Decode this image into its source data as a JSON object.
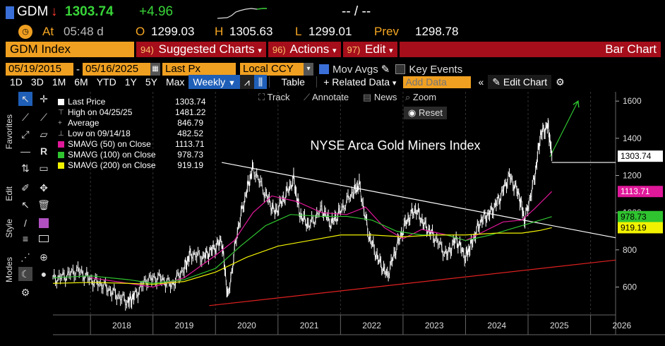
{
  "header": {
    "ticker": "GDM",
    "arrow": "↓",
    "last": "1303.74",
    "change": "+4.96",
    "bidask": "-- / --",
    "at_label": "At",
    "time": "05:48 d",
    "open_label": "O",
    "open": "1299.03",
    "high_label": "H",
    "high": "1305.63",
    "low_label": "L",
    "low": "1299.01",
    "prev_label": "Prev",
    "prev": "1298.78"
  },
  "menubar": {
    "security": "GDM Index",
    "suggested_num": "94)",
    "suggested": "Suggested Charts",
    "actions_num": "96)",
    "actions": "Actions",
    "edit_num": "97)",
    "edit": "Edit",
    "chart_type": "Bar Chart"
  },
  "daterow": {
    "start": "05/19/2015",
    "dash": "-",
    "end": "05/16/2025",
    "price_field": "Last Px",
    "currency": "Local CCY",
    "mov_avgs": "Mov Avgs",
    "key_events": "Key Events"
  },
  "toolrow": {
    "ranges": [
      "1D",
      "3D",
      "1M",
      "6M",
      "YTD",
      "1Y",
      "5Y",
      "Max"
    ],
    "period": "Weekly",
    "table": "Table",
    "related": "Related Data",
    "add_data_placeholder": "Add Data",
    "edit_chart": "Edit Chart"
  },
  "subtools": {
    "track": "Track",
    "annotate": "Annotate",
    "news": "News",
    "zoom": "Zoom",
    "reset": "Reset"
  },
  "sidebar": {
    "favorites": "Favorites",
    "edit": "Edit",
    "style": "Style",
    "modes": "Modes"
  },
  "legend": [
    {
      "label": "Last Price",
      "value": "1303.74",
      "color": "#ffffff"
    },
    {
      "label": "High on 04/25/25",
      "value": "1481.22",
      "color": ""
    },
    {
      "label": "Average",
      "value": "846.79",
      "color": ""
    },
    {
      "label": "Low on 09/14/18",
      "value": "482.52",
      "color": ""
    },
    {
      "label": "SMAVG (50)  on Close",
      "value": "1113.71",
      "color": "#e0189a"
    },
    {
      "label": "SMAVG (100)  on Close",
      "value": "978.73",
      "color": "#2fc42f"
    },
    {
      "label": "SMAVG (200)  on Close",
      "value": "919.19",
      "color": "#f2f200"
    }
  ],
  "chart_data": {
    "type": "line",
    "title": "NYSE Arca Gold Miners Index",
    "x_ticks": [
      "2018",
      "2019",
      "2020",
      "2021",
      "2022",
      "2023",
      "2024",
      "2025",
      "2026"
    ],
    "y_ticks": [
      600,
      800,
      1000,
      1200,
      1400,
      1600
    ],
    "ylim": [
      450,
      1650
    ],
    "xlim": [
      2017.4,
      2026.4
    ],
    "price_labels": [
      {
        "value": 1303.74,
        "text": "1303.74",
        "bg": "#ffffff",
        "fg": "#000000"
      },
      {
        "value": 1113.71,
        "text": "1113.71",
        "bg": "#e0189a",
        "fg": "#ffffff"
      },
      {
        "value": 978.73,
        "text": "978.73",
        "bg": "#2fc42f",
        "fg": "#000000"
      },
      {
        "value": 919.19,
        "text": "919.19",
        "bg": "#f2f200",
        "fg": "#000000"
      }
    ],
    "series": [
      {
        "name": "Last Price",
        "color": "#ffffff",
        "x": [
          2017.4,
          2017.6,
          2017.8,
          2018.0,
          2018.2,
          2018.4,
          2018.6,
          2018.7,
          2018.9,
          2019.1,
          2019.3,
          2019.5,
          2019.6,
          2019.8,
          2019.95,
          2020.1,
          2020.2,
          2020.35,
          2020.5,
          2020.6,
          2020.8,
          2020.95,
          2021.1,
          2021.25,
          2021.35,
          2021.5,
          2021.7,
          2021.85,
          2022.0,
          2022.2,
          2022.3,
          2022.45,
          2022.6,
          2022.75,
          2022.9,
          2023.05,
          2023.2,
          2023.35,
          2023.5,
          2023.7,
          2023.85,
          2024.0,
          2024.1,
          2024.25,
          2024.4,
          2024.55,
          2024.7,
          2024.85,
          2024.95,
          2025.1,
          2025.2,
          2025.32,
          2025.38
        ],
        "y": [
          640,
          660,
          690,
          640,
          610,
          560,
          520,
          550,
          640,
          650,
          610,
          700,
          780,
          760,
          800,
          850,
          540,
          900,
          1120,
          1240,
          1100,
          1000,
          1080,
          1180,
          990,
          930,
          1020,
          940,
          1010,
          1110,
          1150,
          880,
          750,
          660,
          820,
          950,
          1020,
          930,
          870,
          770,
          860,
          760,
          840,
          960,
          1000,
          1080,
          1200,
          1100,
          960,
          1180,
          1420,
          1470,
          1303.74
        ]
      },
      {
        "name": "SMAVG (50)  on Close",
        "color": "#e0189a",
        "x": [
          2018.0,
          2018.6,
          2019.0,
          2019.5,
          2020.0,
          2020.3,
          2020.6,
          2020.9,
          2021.3,
          2021.7,
          2022.1,
          2022.4,
          2022.7,
          2023.0,
          2023.3,
          2023.7,
          2024.0,
          2024.3,
          2024.6,
          2024.9,
          2025.1,
          2025.38
        ],
        "y": [
          650,
          620,
          600,
          650,
          770,
          850,
          1000,
          1090,
          1060,
          1000,
          990,
          1030,
          920,
          860,
          910,
          880,
          850,
          900,
          950,
          960,
          1020,
          1113.71
        ]
      },
      {
        "name": "SMAVG (100)  on Close",
        "color": "#2fc42f",
        "x": [
          2017.4,
          2018.0,
          2018.6,
          2019.0,
          2019.5,
          2020.0,
          2020.4,
          2020.8,
          2021.2,
          2021.7,
          2022.1,
          2022.5,
          2022.9,
          2023.3,
          2023.7,
          2024.0,
          2024.4,
          2024.8,
          2025.1,
          2025.38
        ],
        "y": [
          650,
          660,
          640,
          620,
          640,
          700,
          820,
          930,
          990,
          980,
          980,
          960,
          900,
          880,
          880,
          850,
          880,
          920,
          950,
          978.73
        ]
      },
      {
        "name": "SMAVG (200)  on Close",
        "color": "#f2f200",
        "x": [
          2017.4,
          2018.0,
          2018.6,
          2019.0,
          2019.5,
          2020.0,
          2020.5,
          2021.0,
          2021.5,
          2022.0,
          2022.5,
          2023.0,
          2023.5,
          2024.0,
          2024.5,
          2024.9,
          2025.2,
          2025.38
        ],
        "y": [
          620,
          625,
          620,
          615,
          630,
          680,
          760,
          820,
          850,
          880,
          880,
          870,
          880,
          880,
          890,
          890,
          905,
          919.19
        ]
      }
    ],
    "trendlines": [
      {
        "color": "#ffffff",
        "x": [
          2020.1,
          2026.4
        ],
        "y": [
          1270,
          865
        ]
      },
      {
        "color": "#e02020",
        "x": [
          2019.9,
          2026.4
        ],
        "y": [
          500,
          745
        ]
      },
      {
        "color": "#ffffff",
        "x": [
          2025.38,
          2026.4
        ],
        "y": [
          1270,
          1270
        ]
      },
      {
        "color": "#2fc42f",
        "x": [
          2025.35,
          2025.8
        ],
        "y": [
          1300,
          1600
        ]
      }
    ]
  }
}
